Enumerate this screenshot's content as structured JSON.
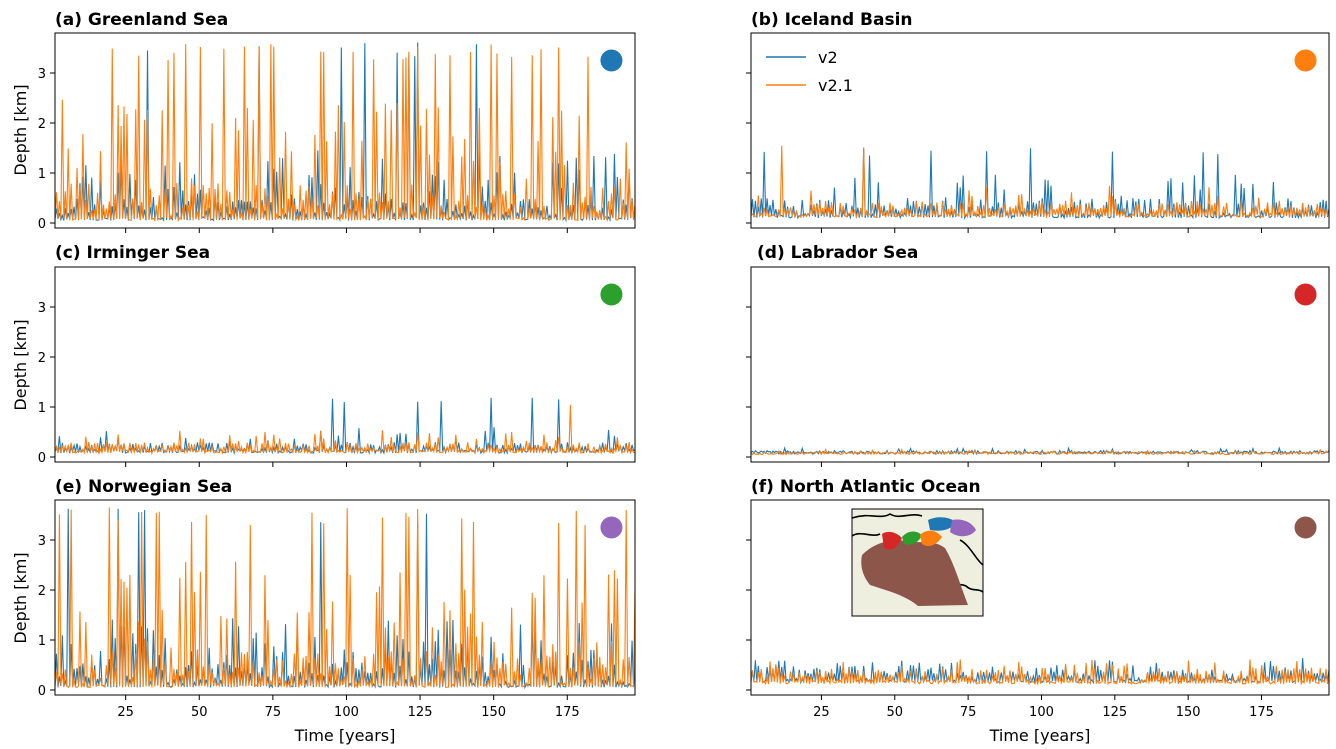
{
  "colors": {
    "v2": "#1f77b4",
    "v2.1": "#ff7f0e",
    "map_land": "#efefdf",
    "map_ocean": "#ffffff"
  },
  "legend": {
    "entries": [
      "v2",
      "v2.1"
    ],
    "placement": "upper-left",
    "panel": "b"
  },
  "xaxis": {
    "label": "Time [years]",
    "ticks": [
      25,
      50,
      75,
      100,
      125,
      150,
      175
    ],
    "range": [
      1,
      198
    ],
    "tick_labels_on_bottom_row_only": true
  },
  "yaxis": {
    "label": "Depth [km]",
    "ticks": [
      0,
      1,
      2,
      3
    ],
    "range": [
      -0.1,
      3.8
    ],
    "tick_labels_on_left_column_only": true
  },
  "inset_map": {
    "panel": "f",
    "regions": [
      {
        "region": "Greenland Sea",
        "color": "#1f77b4"
      },
      {
        "region": "Iceland Basin",
        "color": "#ff7f0e"
      },
      {
        "region": "Irminger Sea",
        "color": "#2ca02c"
      },
      {
        "region": "Labrador Sea",
        "color": "#d62728"
      },
      {
        "region": "Norwegian Sea",
        "color": "#9467bd"
      },
      {
        "region": "North Atlantic Ocean",
        "color": "#8c564b"
      }
    ]
  },
  "chart_data": [
    {
      "type": "line",
      "id": "a",
      "title": "(a) Greenland Sea",
      "marker_color": "#1f77b4",
      "marker_value": 3.25,
      "marker_year": 190,
      "xlabel": "",
      "ylabel": "Depth [km]",
      "xlim": [
        1,
        198
      ],
      "ylim": [
        -0.1,
        3.8
      ],
      "series": [
        {
          "name": "v2",
          "baseline": 0.05,
          "typical": 0.5,
          "peak_level": 1.3,
          "peak_fraction": 0.3,
          "max": 3.62,
          "max_fraction": 0.04
        },
        {
          "name": "v2.1",
          "baseline": 0.05,
          "typical": 0.8,
          "peak_level": 2.2,
          "peak_fraction": 0.3,
          "max": 3.62,
          "max_fraction": 0.12
        }
      ]
    },
    {
      "type": "line",
      "id": "b",
      "title": "(b) Iceland Basin",
      "marker_color": "#ff7f0e",
      "marker_value": 3.25,
      "marker_year": 190,
      "xlabel": "",
      "ylabel": "",
      "xlim": [
        1,
        198
      ],
      "ylim": [
        -0.1,
        3.8
      ],
      "series": [
        {
          "name": "v2",
          "baseline": 0.1,
          "typical": 0.5,
          "peak_level": 0.9,
          "peak_fraction": 0.12,
          "max": 1.5,
          "max_fraction": 0.03
        },
        {
          "name": "v2.1",
          "baseline": 0.12,
          "typical": 0.45,
          "peak_level": 0.7,
          "peak_fraction": 0.08,
          "max": 1.55,
          "max_fraction": 0.01
        }
      ]
    },
    {
      "type": "line",
      "id": "c",
      "title": "(c) Irminger Sea",
      "marker_color": "#2ca02c",
      "marker_value": 3.25,
      "marker_year": 190,
      "xlabel": "",
      "ylabel": "Depth [km]",
      "xlim": [
        1,
        198
      ],
      "ylim": [
        -0.1,
        3.8
      ],
      "series": [
        {
          "name": "v2",
          "baseline": 0.08,
          "typical": 0.3,
          "peak_level": 0.55,
          "peak_fraction": 0.12,
          "max": 1.22,
          "max_fraction": 0.04
        },
        {
          "name": "v2.1",
          "baseline": 0.08,
          "typical": 0.3,
          "peak_level": 0.5,
          "peak_fraction": 0.1,
          "max": 1.1,
          "max_fraction": 0.01
        }
      ]
    },
    {
      "type": "line",
      "id": "d",
      "title": "(d) Labrador Sea",
      "marker_color": "#d62728",
      "marker_value": 3.25,
      "marker_year": 190,
      "xlabel": "",
      "ylabel": "",
      "xlim": [
        1,
        198
      ],
      "ylim": [
        -0.1,
        3.8
      ],
      "series": [
        {
          "name": "v2",
          "baseline": 0.06,
          "typical": 0.13,
          "peak_level": 0.17,
          "peak_fraction": 0.1,
          "max": 0.18,
          "max_fraction": 0.02
        },
        {
          "name": "v2.1",
          "baseline": 0.05,
          "typical": 0.11,
          "peak_level": 0.14,
          "peak_fraction": 0.08,
          "max": 0.15,
          "max_fraction": 0.01
        }
      ]
    },
    {
      "type": "line",
      "id": "e",
      "title": "(e) Norwegian Sea",
      "marker_color": "#9467bd",
      "marker_value": 3.25,
      "marker_year": 190,
      "xlabel": "Time [years]",
      "ylabel": "Depth [km]",
      "xlim": [
        1,
        198
      ],
      "ylim": [
        -0.1,
        3.8
      ],
      "series": [
        {
          "name": "v2",
          "baseline": 0.05,
          "typical": 0.55,
          "peak_level": 1.3,
          "peak_fraction": 0.3,
          "max": 3.65,
          "max_fraction": 0.03
        },
        {
          "name": "v2.1",
          "baseline": 0.05,
          "typical": 0.8,
          "peak_level": 2.3,
          "peak_fraction": 0.3,
          "max": 3.65,
          "max_fraction": 0.12
        }
      ]
    },
    {
      "type": "line",
      "id": "f",
      "title": "(f) North Atlantic Ocean",
      "marker_color": "#8c564b",
      "marker_value": 3.25,
      "marker_year": 190,
      "xlabel": "Time [years]",
      "ylabel": "",
      "xlim": [
        1,
        198
      ],
      "ylim": [
        -0.1,
        3.8
      ],
      "series": [
        {
          "name": "v2",
          "baseline": 0.15,
          "typical": 0.5,
          "peak_level": 0.58,
          "peak_fraction": 0.1,
          "max": 0.65,
          "max_fraction": 0.02
        },
        {
          "name": "v2.1",
          "baseline": 0.12,
          "typical": 0.45,
          "peak_level": 0.55,
          "peak_fraction": 0.08,
          "max": 0.62,
          "max_fraction": 0.02
        }
      ]
    }
  ]
}
